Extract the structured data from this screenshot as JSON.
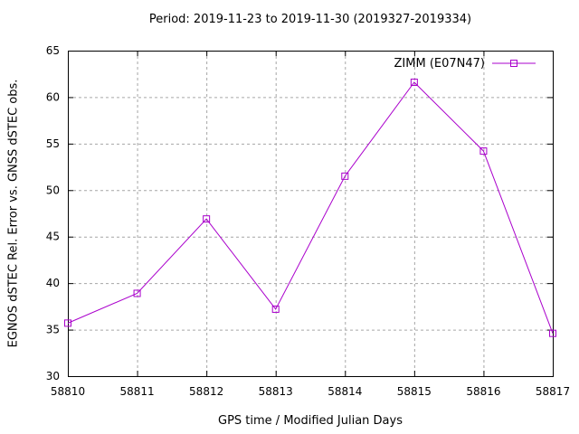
{
  "title": "Period: 2019-11-23 to 2019-11-30 (2019327-2019334)",
  "colors": {
    "series_line": "#AA00CC",
    "grid": "#A6A6A6",
    "axis": "#000000",
    "text": "#000000",
    "background": "#FFFFFF"
  },
  "legend": {
    "label": "ZIMM (E07N47)",
    "marker": "open-square",
    "position": "top-right-inside"
  },
  "chart_data": {
    "type": "line",
    "title": "Period: 2019-11-23 to 2019-11-30 (2019327-2019334)",
    "xlabel": "GPS time / Modified Julian Days",
    "ylabel": "EGNOS dSTEC Rel. Error vs. GNSS dSTEC obs.",
    "x": [
      58810,
      58811,
      58812,
      58813,
      58814,
      58815,
      58816,
      58817
    ],
    "series": [
      {
        "name": "ZIMM (E07N47)",
        "color": "#AA00CC",
        "marker": "open-square",
        "values": [
          35.7,
          38.9,
          46.9,
          37.2,
          51.5,
          61.6,
          54.2,
          34.6
        ]
      }
    ],
    "xlim": [
      58810,
      58817
    ],
    "ylim": [
      30,
      65
    ],
    "xticks": [
      58810,
      58811,
      58812,
      58813,
      58814,
      58815,
      58816,
      58817
    ],
    "yticks": [
      30,
      35,
      40,
      45,
      50,
      55,
      60,
      65
    ],
    "grid": true,
    "grid_style": "dashed",
    "legend_position": "top-right"
  }
}
